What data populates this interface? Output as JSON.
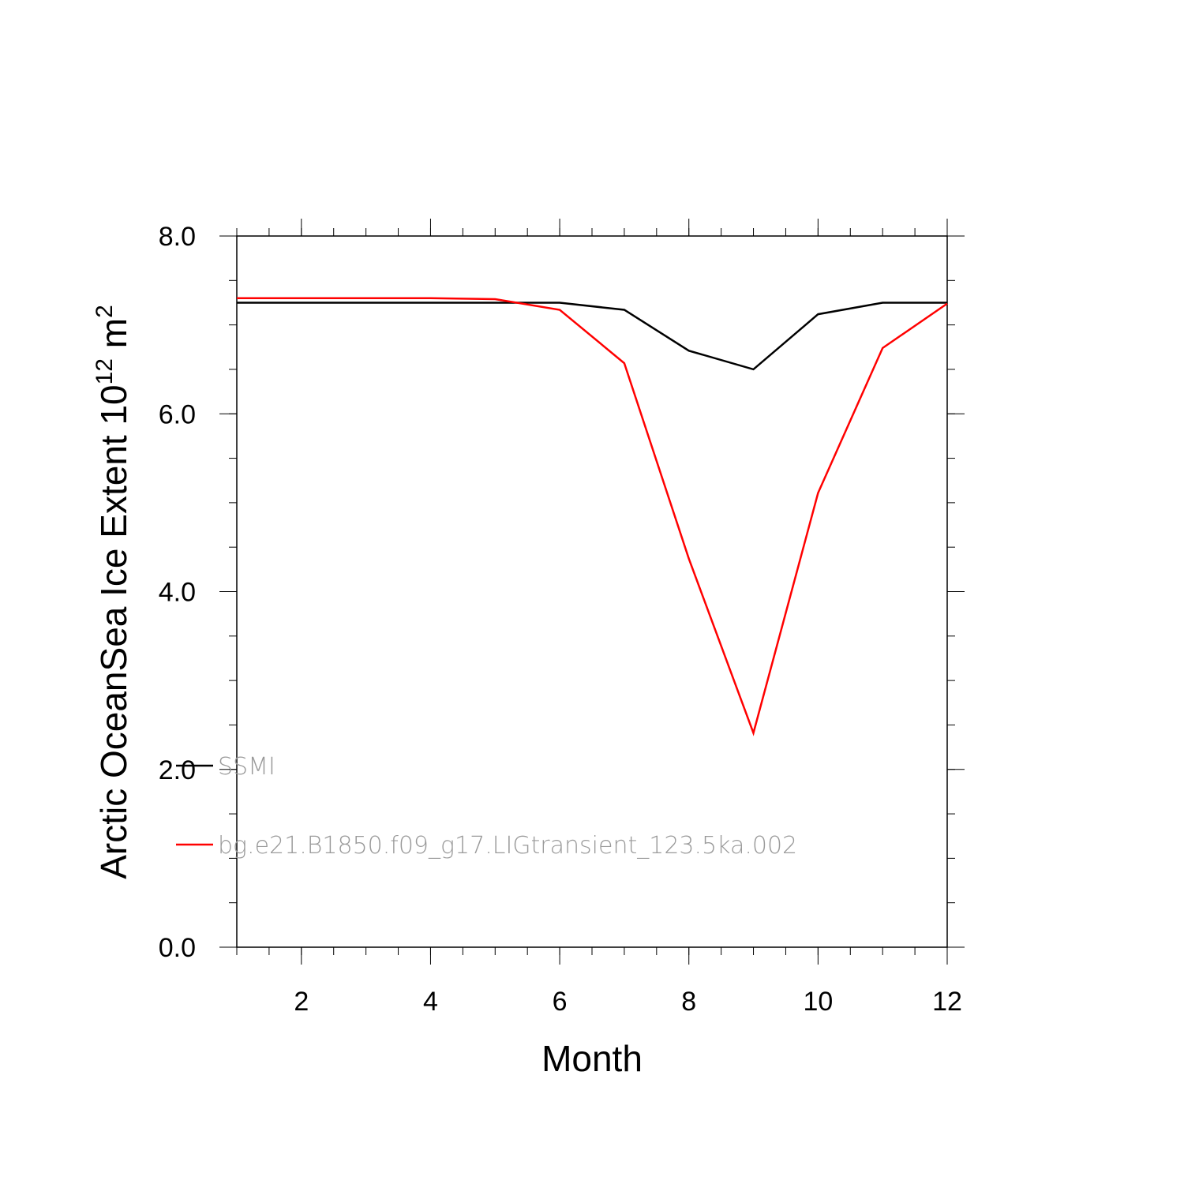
{
  "chart_data": {
    "type": "line",
    "xlabel": "Month",
    "ylabel_main": "Arctic OceanSea Ice Extent 10",
    "ylabel_exp": "12",
    "ylabel_unit": " m",
    "ylabel_unit_exp": "2",
    "xlim": [
      1,
      12
    ],
    "ylim": [
      0,
      8
    ],
    "x_ticks": [
      2,
      4,
      6,
      8,
      10,
      12
    ],
    "x_tick_labels": [
      "2",
      "4",
      "6",
      "8",
      "10",
      "12"
    ],
    "y_ticks": [
      0,
      2,
      4,
      6,
      8
    ],
    "y_tick_labels": [
      "0.0",
      "2.0",
      "4.0",
      "6.0",
      "8.0"
    ],
    "grid": false,
    "legend_position": "lower-left inside",
    "x": [
      1,
      2,
      3,
      4,
      5,
      6,
      7,
      8,
      9,
      10,
      11,
      12
    ],
    "series": [
      {
        "name": "SSMI",
        "color": "#000000",
        "values": [
          7.25,
          7.25,
          7.25,
          7.25,
          7.25,
          7.25,
          7.17,
          6.71,
          6.5,
          7.12,
          7.25,
          7.25
        ]
      },
      {
        "name": "bg.e21.B1850.f09_g17.LIGtransient_123.5ka.002",
        "color": "#ff0000",
        "values": [
          7.3,
          7.3,
          7.3,
          7.3,
          7.29,
          7.17,
          6.57,
          4.37,
          2.41,
          5.11,
          6.74,
          7.24
        ]
      }
    ]
  }
}
